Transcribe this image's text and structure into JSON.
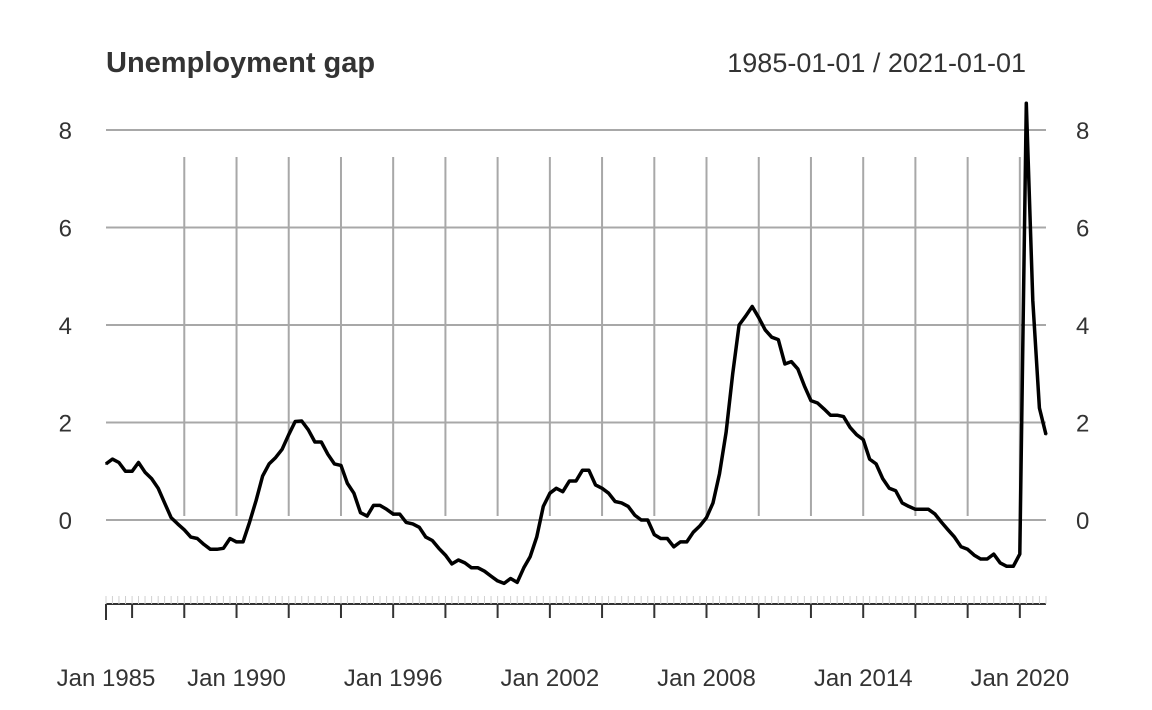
{
  "chart_data": {
    "type": "line",
    "title": "Unemployment gap",
    "date_range_label": "1985-01-01 / 2021-01-01",
    "ylim": [
      -1.6,
      8.6
    ],
    "y_ticks": [
      0,
      2,
      4,
      6,
      8
    ],
    "x_range": [
      "1985-01-01",
      "2021-01-01"
    ],
    "x_tick_labels": [
      {
        "date": "1985-01-01",
        "label": "Jan 1985"
      },
      {
        "date": "1990-01-01",
        "label": "Jan 1990"
      },
      {
        "date": "1996-01-01",
        "label": "Jan 1996"
      },
      {
        "date": "2002-01-01",
        "label": "Jan 2002"
      },
      {
        "date": "2008-01-01",
        "label": "Jan 2008"
      },
      {
        "date": "2014-01-01",
        "label": "Jan 2014"
      },
      {
        "date": "2020-01-01",
        "label": "Jan 2020"
      }
    ],
    "series": [
      {
        "values": [
          [
            "1985-01-01",
            1.15
          ],
          [
            "1985-04-01",
            1.25
          ],
          [
            "1985-07-01",
            1.18
          ],
          [
            "1985-10-01",
            1.0
          ],
          [
            "1986-01-01",
            1.0
          ],
          [
            "1986-04-01",
            1.18
          ],
          [
            "1986-07-01",
            0.98
          ],
          [
            "1986-10-01",
            0.85
          ],
          [
            "1987-01-01",
            0.65
          ],
          [
            "1987-04-01",
            0.35
          ],
          [
            "1987-07-01",
            0.05
          ],
          [
            "1987-10-01",
            -0.08
          ],
          [
            "1988-01-01",
            -0.2
          ],
          [
            "1988-04-01",
            -0.35
          ],
          [
            "1988-07-01",
            -0.38
          ],
          [
            "1988-10-01",
            -0.5
          ],
          [
            "1989-01-01",
            -0.6
          ],
          [
            "1989-04-01",
            -0.6
          ],
          [
            "1989-07-01",
            -0.58
          ],
          [
            "1989-10-01",
            -0.38
          ],
          [
            "1990-01-01",
            -0.45
          ],
          [
            "1990-04-01",
            -0.45
          ],
          [
            "1990-07-01",
            -0.05
          ],
          [
            "1990-10-01",
            0.4
          ],
          [
            "1991-01-01",
            0.9
          ],
          [
            "1991-04-01",
            1.15
          ],
          [
            "1991-07-01",
            1.28
          ],
          [
            "1991-10-01",
            1.45
          ],
          [
            "1992-01-01",
            1.75
          ],
          [
            "1992-04-01",
            2.02
          ],
          [
            "1992-07-01",
            2.03
          ],
          [
            "1992-10-01",
            1.85
          ],
          [
            "1993-01-01",
            1.6
          ],
          [
            "1993-04-01",
            1.6
          ],
          [
            "1993-07-01",
            1.35
          ],
          [
            "1993-10-01",
            1.15
          ],
          [
            "1994-01-01",
            1.12
          ],
          [
            "1994-04-01",
            0.75
          ],
          [
            "1994-07-01",
            0.55
          ],
          [
            "1994-10-01",
            0.15
          ],
          [
            "1995-01-01",
            0.08
          ],
          [
            "1995-04-01",
            0.3
          ],
          [
            "1995-07-01",
            0.3
          ],
          [
            "1995-10-01",
            0.22
          ],
          [
            "1996-01-01",
            0.12
          ],
          [
            "1996-04-01",
            0.12
          ],
          [
            "1996-07-01",
            -0.05
          ],
          [
            "1996-10-01",
            -0.08
          ],
          [
            "1997-01-01",
            -0.15
          ],
          [
            "1997-04-01",
            -0.35
          ],
          [
            "1997-07-01",
            -0.42
          ],
          [
            "1997-10-01",
            -0.58
          ],
          [
            "1998-01-01",
            -0.72
          ],
          [
            "1998-04-01",
            -0.9
          ],
          [
            "1998-07-01",
            -0.82
          ],
          [
            "1998-10-01",
            -0.88
          ],
          [
            "1999-01-01",
            -0.98
          ],
          [
            "1999-04-01",
            -0.98
          ],
          [
            "1999-07-01",
            -1.05
          ],
          [
            "1999-10-01",
            -1.15
          ],
          [
            "2000-01-01",
            -1.25
          ],
          [
            "2000-04-01",
            -1.3
          ],
          [
            "2000-07-01",
            -1.2
          ],
          [
            "2000-10-01",
            -1.28
          ],
          [
            "2001-01-01",
            -0.98
          ],
          [
            "2001-04-01",
            -0.75
          ],
          [
            "2001-07-01",
            -0.35
          ],
          [
            "2001-10-01",
            0.28
          ],
          [
            "2002-01-01",
            0.55
          ],
          [
            "2002-04-01",
            0.65
          ],
          [
            "2002-07-01",
            0.58
          ],
          [
            "2002-10-01",
            0.8
          ],
          [
            "2003-01-01",
            0.8
          ],
          [
            "2003-04-01",
            1.02
          ],
          [
            "2003-07-01",
            1.02
          ],
          [
            "2003-10-01",
            0.72
          ],
          [
            "2004-01-01",
            0.65
          ],
          [
            "2004-04-01",
            0.55
          ],
          [
            "2004-07-01",
            0.38
          ],
          [
            "2004-10-01",
            0.35
          ],
          [
            "2005-01-01",
            0.28
          ],
          [
            "2005-04-01",
            0.1
          ],
          [
            "2005-07-01",
            0.0
          ],
          [
            "2005-10-01",
            0.0
          ],
          [
            "2006-01-01",
            -0.3
          ],
          [
            "2006-04-01",
            -0.38
          ],
          [
            "2006-07-01",
            -0.38
          ],
          [
            "2006-10-01",
            -0.55
          ],
          [
            "2007-01-01",
            -0.45
          ],
          [
            "2007-04-01",
            -0.45
          ],
          [
            "2007-07-01",
            -0.25
          ],
          [
            "2007-10-01",
            -0.12
          ],
          [
            "2008-01-01",
            0.05
          ],
          [
            "2008-04-01",
            0.35
          ],
          [
            "2008-07-01",
            0.95
          ],
          [
            "2008-10-01",
            1.8
          ],
          [
            "2009-01-01",
            3.0
          ],
          [
            "2009-04-01",
            4.0
          ],
          [
            "2009-07-01",
            4.18
          ],
          [
            "2009-10-01",
            4.38
          ],
          [
            "2010-01-01",
            4.15
          ],
          [
            "2010-04-01",
            3.9
          ],
          [
            "2010-07-01",
            3.75
          ],
          [
            "2010-10-01",
            3.7
          ],
          [
            "2011-01-01",
            3.2
          ],
          [
            "2011-04-01",
            3.25
          ],
          [
            "2011-07-01",
            3.1
          ],
          [
            "2011-10-01",
            2.75
          ],
          [
            "2012-01-01",
            2.45
          ],
          [
            "2012-04-01",
            2.4
          ],
          [
            "2012-07-01",
            2.28
          ],
          [
            "2012-10-01",
            2.15
          ],
          [
            "2013-01-01",
            2.15
          ],
          [
            "2013-04-01",
            2.12
          ],
          [
            "2013-07-01",
            1.9
          ],
          [
            "2013-10-01",
            1.75
          ],
          [
            "2014-01-01",
            1.65
          ],
          [
            "2014-04-01",
            1.25
          ],
          [
            "2014-07-01",
            1.15
          ],
          [
            "2014-10-01",
            0.85
          ],
          [
            "2015-01-01",
            0.65
          ],
          [
            "2015-04-01",
            0.6
          ],
          [
            "2015-07-01",
            0.35
          ],
          [
            "2015-10-01",
            0.28
          ],
          [
            "2016-01-01",
            0.22
          ],
          [
            "2016-04-01",
            0.22
          ],
          [
            "2016-07-01",
            0.22
          ],
          [
            "2016-10-01",
            0.12
          ],
          [
            "2017-01-01",
            -0.05
          ],
          [
            "2017-04-01",
            -0.2
          ],
          [
            "2017-07-01",
            -0.35
          ],
          [
            "2017-10-01",
            -0.55
          ],
          [
            "2018-01-01",
            -0.6
          ],
          [
            "2018-04-01",
            -0.72
          ],
          [
            "2018-07-01",
            -0.8
          ],
          [
            "2018-10-01",
            -0.8
          ],
          [
            "2019-01-01",
            -0.7
          ],
          [
            "2019-04-01",
            -0.88
          ],
          [
            "2019-07-01",
            -0.95
          ],
          [
            "2019-10-01",
            -0.95
          ],
          [
            "2020-01-01",
            -0.7
          ],
          [
            "2020-04-01",
            8.55
          ],
          [
            "2020-07-01",
            4.5
          ],
          [
            "2020-10-01",
            2.3
          ],
          [
            "2021-01-01",
            1.75
          ]
        ]
      }
    ]
  }
}
